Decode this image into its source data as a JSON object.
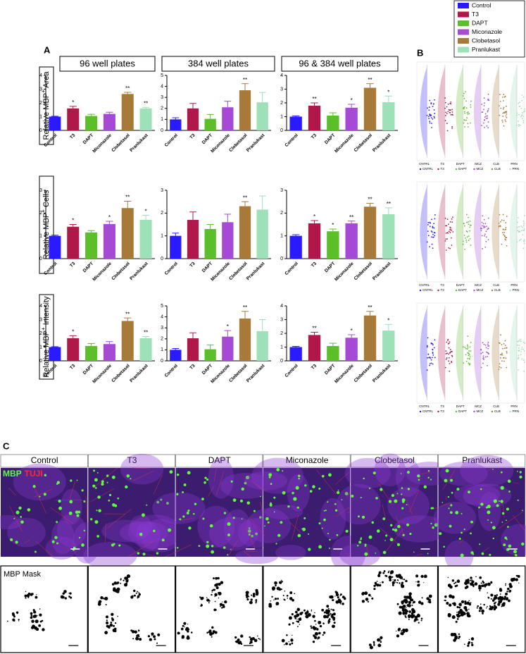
{
  "chart_data": [
    {
      "type": "bar",
      "categories": [
        "Control",
        "T3",
        "DAPT",
        "Miconazole",
        "Clobetasol",
        "Pranlukast"
      ],
      "colors": [
        "#2a1aff",
        "#b0184a",
        "#5cbf2a",
        "#a64ad6",
        "#a87a3a",
        "#9ee0b8"
      ],
      "values": [
        1.0,
        1.6,
        1.05,
        1.2,
        2.65,
        1.6
      ],
      "errors": [
        0.03,
        0.15,
        0.12,
        0.12,
        0.12,
        0.08
      ],
      "annotations": [
        null,
        "*",
        null,
        null,
        "**",
        "**"
      ],
      "ylim": [
        0,
        4
      ],
      "yticks": [
        0,
        1,
        2,
        3,
        4
      ]
    },
    {
      "type": "bar",
      "categories": [
        "Control",
        "T3",
        "DAPT",
        "Miconazole",
        "Clobetasol",
        "Pranlukast"
      ],
      "colors": [
        "#2a1aff",
        "#b0184a",
        "#5cbf2a",
        "#a64ad6",
        "#a87a3a",
        "#9ee0b8"
      ],
      "values": [
        1.0,
        2.0,
        1.05,
        2.1,
        3.65,
        2.55
      ],
      "errors": [
        0.15,
        0.45,
        0.4,
        0.55,
        0.6,
        0.9
      ],
      "annotations": [
        null,
        null,
        null,
        null,
        "**",
        null
      ],
      "ylim": [
        0,
        5
      ],
      "yticks": [
        0,
        1,
        2,
        3,
        4,
        5
      ]
    },
    {
      "type": "bar",
      "categories": [
        "Control",
        "T3",
        "DAPT",
        "Miconazole",
        "Clobetasol",
        "Pranlukast"
      ],
      "colors": [
        "#2a1aff",
        "#b0184a",
        "#5cbf2a",
        "#a64ad6",
        "#a87a3a",
        "#9ee0b8"
      ],
      "values": [
        1.0,
        1.8,
        1.08,
        1.65,
        3.1,
        2.05
      ],
      "errors": [
        0.05,
        0.2,
        0.2,
        0.25,
        0.3,
        0.45
      ],
      "annotations": [
        null,
        "**",
        null,
        "*",
        "**",
        "*"
      ],
      "ylim": [
        0,
        4
      ],
      "yticks": [
        0,
        1,
        2,
        3,
        4
      ]
    },
    {
      "type": "bar",
      "categories": [
        "Control",
        "T3",
        "DAPT",
        "Miconazole",
        "Clobetasol",
        "Pranlukast"
      ],
      "colors": [
        "#2a1aff",
        "#b0184a",
        "#5cbf2a",
        "#a64ad6",
        "#a87a3a",
        "#9ee0b8"
      ],
      "values": [
        1.0,
        1.4,
        1.15,
        1.52,
        2.22,
        1.7
      ],
      "errors": [
        0.03,
        0.1,
        0.08,
        0.12,
        0.3,
        0.2
      ],
      "annotations": [
        null,
        "*",
        null,
        "*",
        "**",
        "*"
      ],
      "ylim": [
        0,
        3
      ],
      "yticks": [
        0,
        1,
        2,
        3
      ]
    },
    {
      "type": "bar",
      "categories": [
        "Control",
        "T3",
        "DAPT",
        "Miconazole",
        "Clobetasol",
        "Pranlukast"
      ],
      "colors": [
        "#2a1aff",
        "#b0184a",
        "#5cbf2a",
        "#a64ad6",
        "#a87a3a",
        "#9ee0b8"
      ],
      "values": [
        1.0,
        1.7,
        1.3,
        1.6,
        2.3,
        2.15
      ],
      "errors": [
        0.12,
        0.35,
        0.2,
        0.35,
        0.2,
        0.6
      ],
      "annotations": [
        null,
        null,
        null,
        null,
        "**",
        null
      ],
      "ylim": [
        0,
        3
      ],
      "yticks": [
        0,
        1,
        2,
        3
      ]
    },
    {
      "type": "bar",
      "categories": [
        "Control",
        "T3",
        "DAPT",
        "Miconazole",
        "Clobetasol",
        "Pranlukast"
      ],
      "colors": [
        "#2a1aff",
        "#b0184a",
        "#5cbf2a",
        "#a64ad6",
        "#a87a3a",
        "#9ee0b8"
      ],
      "values": [
        1.0,
        1.55,
        1.2,
        1.55,
        2.28,
        1.95
      ],
      "errors": [
        0.05,
        0.12,
        0.1,
        0.1,
        0.15,
        0.28
      ],
      "annotations": [
        null,
        "*",
        "*",
        "**",
        "**",
        "**"
      ],
      "ylim": [
        0,
        3
      ],
      "yticks": [
        0,
        1,
        2,
        3
      ]
    },
    {
      "type": "bar",
      "categories": [
        "Control",
        "T3",
        "DAPT",
        "Miconazole",
        "Clobetasol",
        "Pranlukast"
      ],
      "colors": [
        "#2a1aff",
        "#b0184a",
        "#5cbf2a",
        "#a64ad6",
        "#a87a3a",
        "#9ee0b8"
      ],
      "values": [
        1.0,
        1.65,
        1.08,
        1.22,
        2.9,
        1.65
      ],
      "errors": [
        0.03,
        0.18,
        0.18,
        0.18,
        0.22,
        0.12
      ],
      "annotations": [
        null,
        "*",
        null,
        null,
        "**",
        "**"
      ],
      "ylim": [
        0,
        4
      ],
      "yticks": [
        0,
        1,
        2,
        3,
        4
      ]
    },
    {
      "type": "bar",
      "categories": [
        "Control",
        "T3",
        "DAPT",
        "Miconazole",
        "Clobetasol",
        "Pranlukast"
      ],
      "colors": [
        "#2a1aff",
        "#b0184a",
        "#5cbf2a",
        "#a64ad6",
        "#a87a3a",
        "#9ee0b8"
      ],
      "values": [
        1.0,
        2.05,
        1.05,
        2.2,
        3.85,
        2.7
      ],
      "errors": [
        0.12,
        0.5,
        0.4,
        0.55,
        0.65,
        1.05
      ],
      "annotations": [
        null,
        null,
        null,
        "*",
        "**",
        null
      ],
      "ylim": [
        0,
        5
      ],
      "yticks": [
        0,
        1,
        2,
        3,
        4,
        5
      ]
    },
    {
      "type": "bar",
      "categories": [
        "Control",
        "T3",
        "DAPT",
        "Miconazole",
        "Clobetasol",
        "Pranlukast"
      ],
      "colors": [
        "#2a1aff",
        "#b0184a",
        "#5cbf2a",
        "#a64ad6",
        "#a87a3a",
        "#9ee0b8"
      ],
      "values": [
        1.0,
        1.88,
        1.08,
        1.68,
        3.3,
        2.2
      ],
      "errors": [
        0.05,
        0.2,
        0.2,
        0.22,
        0.3,
        0.45
      ],
      "annotations": [
        null,
        "**",
        null,
        "*",
        "**",
        "*"
      ],
      "ylim": [
        0,
        4
      ],
      "yticks": [
        0,
        1,
        2,
        3,
        4
      ]
    }
  ],
  "panel_a": {
    "label": "A",
    "column_titles": [
      "96 well plates",
      "384 well plates",
      "96 & 384 well plates"
    ],
    "row_labels": [
      {
        "prefix": "Relative MBP",
        "sup": "+",
        "suffix": " Area"
      },
      {
        "prefix": "Relative MBP",
        "sup": "+",
        "suffix": " Cells"
      },
      {
        "prefix": "Relative MBP",
        "sup": "+",
        "suffix": " Intensity"
      }
    ]
  },
  "legend": [
    {
      "name": "Control",
      "color": "#2a1aff"
    },
    {
      "name": "T3",
      "color": "#b0184a"
    },
    {
      "name": "DAPT",
      "color": "#5cbf2a"
    },
    {
      "name": "Miconazole",
      "color": "#a64ad6"
    },
    {
      "name": "Clobetasol",
      "color": "#a87a3a"
    },
    {
      "name": "Pranlukast",
      "color": "#9ee0b8"
    }
  ],
  "panel_b": {
    "label": "B",
    "groups": [
      "CNTRL",
      "T3",
      "DAPT",
      "MCZ",
      "CLB",
      "PRN"
    ]
  },
  "panel_c": {
    "label": "C",
    "column_titles": [
      "Control",
      "T3",
      "DAPT",
      "Miconazole",
      "Clobetasol",
      "Pranlukast"
    ],
    "stain_1": "MBP",
    "stain_2": "TUJI",
    "mask_label": "MBP Mask"
  }
}
